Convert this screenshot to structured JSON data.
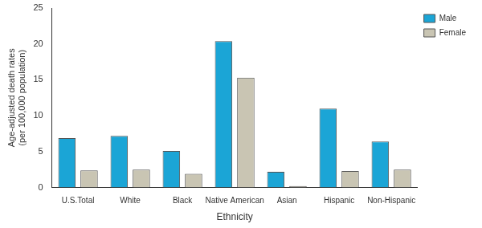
{
  "chart_data": {
    "type": "bar",
    "x_label": "Ethnicity",
    "y_label": [
      "Age-adjusted death rates",
      "(per 100,000 population)"
    ],
    "categories": [
      "U.S.Total",
      "White",
      "Black",
      "Native American",
      "Asian",
      "Hispanic",
      "Non-Hispanic"
    ],
    "series": [
      {
        "name": "Male",
        "color": "#1ba5d6",
        "values": [
          6.9,
          7.2,
          5.1,
          20.4,
          2.2,
          11.0,
          6.4
        ]
      },
      {
        "name": "Female",
        "color": "#c9c5b3",
        "values": [
          2.4,
          2.5,
          1.9,
          15.3,
          0.2,
          2.3,
          2.5
        ]
      }
    ],
    "ylim": [
      0,
      25
    ],
    "yticks": [
      0,
      5,
      10,
      15,
      20,
      25
    ],
    "grid": false,
    "legend": "upper right"
  }
}
